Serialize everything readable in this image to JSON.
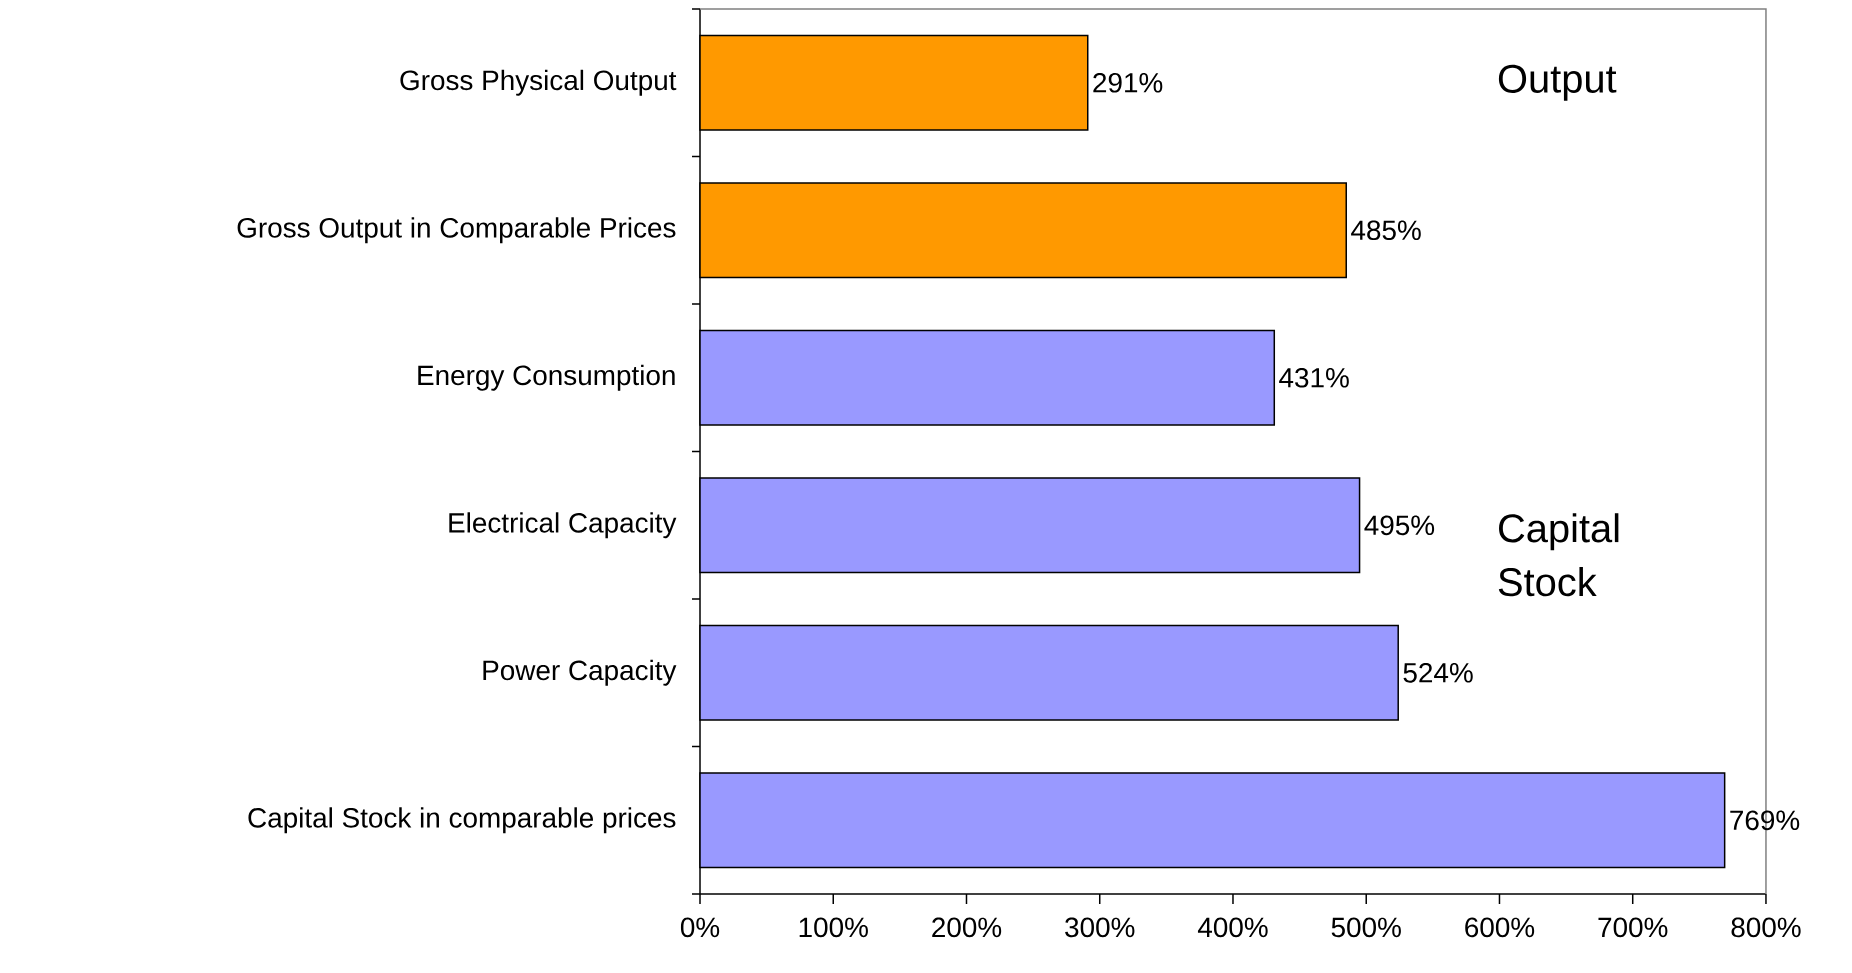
{
  "chart_data": {
    "type": "bar",
    "orientation": "horizontal",
    "categories": [
      "Gross Physical Output",
      "Gross Output in Comparable Prices",
      "Energy Consumption",
      "Electrical Capacity",
      "Power Capacity",
      "Capital Stock in comparable prices"
    ],
    "values": [
      291,
      485,
      431,
      495,
      524,
      769
    ],
    "colors": [
      "#ff9900",
      "#ff9900",
      "#9999ff",
      "#9999ff",
      "#9999ff",
      "#9999ff"
    ],
    "value_labels": [
      "291%",
      "485%",
      "431%",
      "495%",
      "524%",
      "769%"
    ],
    "xlim": [
      0,
      800
    ],
    "xticks": [
      {
        "value": 0,
        "label": "0%"
      },
      {
        "value": 100,
        "label": "100%"
      },
      {
        "value": 200,
        "label": "200%"
      },
      {
        "value": 300,
        "label": "300%"
      },
      {
        "value": 400,
        "label": "400%"
      },
      {
        "value": 500,
        "label": "500%"
      },
      {
        "value": 600,
        "label": "600%"
      },
      {
        "value": 700,
        "label": "700%"
      },
      {
        "value": 800,
        "label": "800%"
      }
    ],
    "annotations": [
      "Output",
      "Capital Stock"
    ]
  }
}
